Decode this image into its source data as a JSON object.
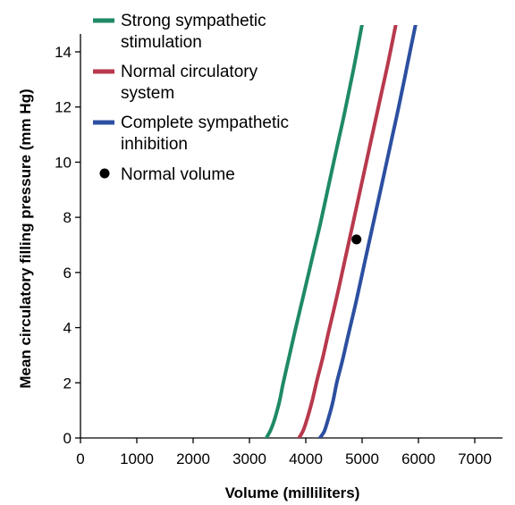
{
  "chart_data": {
    "type": "line",
    "title": "",
    "xlabel": "Volume (milliliters)",
    "ylabel": "Mean circulatory filling pressure (mm Hg)",
    "xlim": [
      0,
      7500
    ],
    "ylim": [
      0,
      14.8
    ],
    "xticks": [
      0,
      1000,
      2000,
      3000,
      4000,
      5000,
      6000,
      7000
    ],
    "yticks": [
      0,
      2,
      4,
      6,
      8,
      10,
      12,
      14
    ],
    "grid": false,
    "legend_position": "top-left",
    "series": [
      {
        "name": "Strong sympathetic stimulation",
        "color": "#1f8a66",
        "x": [
          3300,
          3380,
          3450,
          3530,
          3600,
          3700,
          3800,
          3950,
          4100,
          4250,
          4400,
          4550,
          4700,
          4850,
          5000
        ],
        "y": [
          0,
          0.3,
          0.7,
          1.3,
          2.0,
          2.9,
          3.8,
          5.1,
          6.4,
          7.7,
          9.1,
          10.5,
          11.9,
          13.4,
          15.0
        ]
      },
      {
        "name": "Normal circulatory system",
        "color": "#b8394d",
        "x": [
          3880,
          3960,
          4040,
          4120,
          4200,
          4300,
          4400,
          4550,
          4700,
          4850,
          5000,
          5150,
          5300,
          5450,
          5600
        ],
        "y": [
          0,
          0.3,
          0.8,
          1.4,
          2.1,
          2.9,
          3.8,
          5.1,
          6.5,
          7.9,
          9.3,
          10.7,
          12.1,
          13.5,
          15.0
        ]
      },
      {
        "name": "Complete sympathetic inhibition",
        "color": "#2c4fa0",
        "x": [
          4250,
          4330,
          4400,
          4480,
          4550,
          4650,
          4750,
          4900,
          5050,
          5200,
          5350,
          5500,
          5650,
          5800,
          5950
        ],
        "y": [
          0,
          0.25,
          0.7,
          1.3,
          2.0,
          2.8,
          3.7,
          5.0,
          6.4,
          7.8,
          9.2,
          10.6,
          12.0,
          13.5,
          15.0
        ]
      }
    ],
    "points": [
      {
        "name": "Normal volume",
        "x": 4900,
        "y": 7.2,
        "color": "#000000"
      }
    ]
  }
}
